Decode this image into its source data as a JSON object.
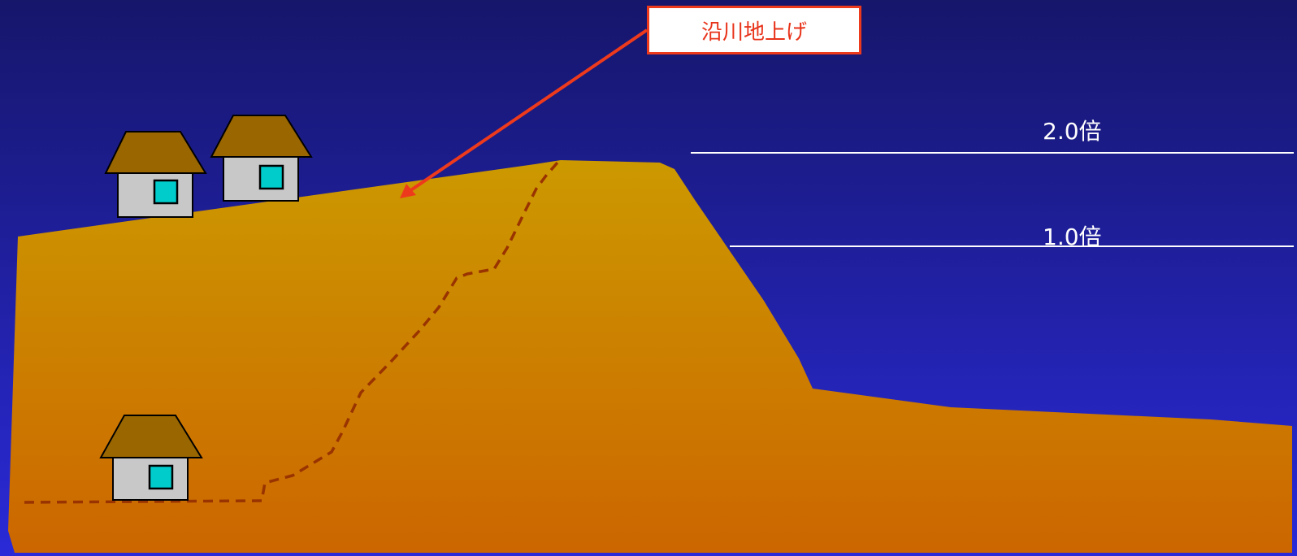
{
  "callout": {
    "label": "沿川地上げ"
  },
  "water_levels": [
    {
      "label": "2.0倍"
    },
    {
      "label": "1.0倍"
    }
  ],
  "colors": {
    "sky_top": "#16166b",
    "sky_bottom": "#2a2ad8",
    "ground_top": "#cc9900",
    "ground_bottom": "#cc6600",
    "roof": "#996600",
    "wall": "#c8c8c8",
    "window": "#00cccc",
    "arrow": "#ee3a1c",
    "dashed_line": "#993300",
    "level_line": "#ffffff"
  },
  "icons": {
    "house": "house-icon",
    "arrow": "arrow-icon"
  }
}
